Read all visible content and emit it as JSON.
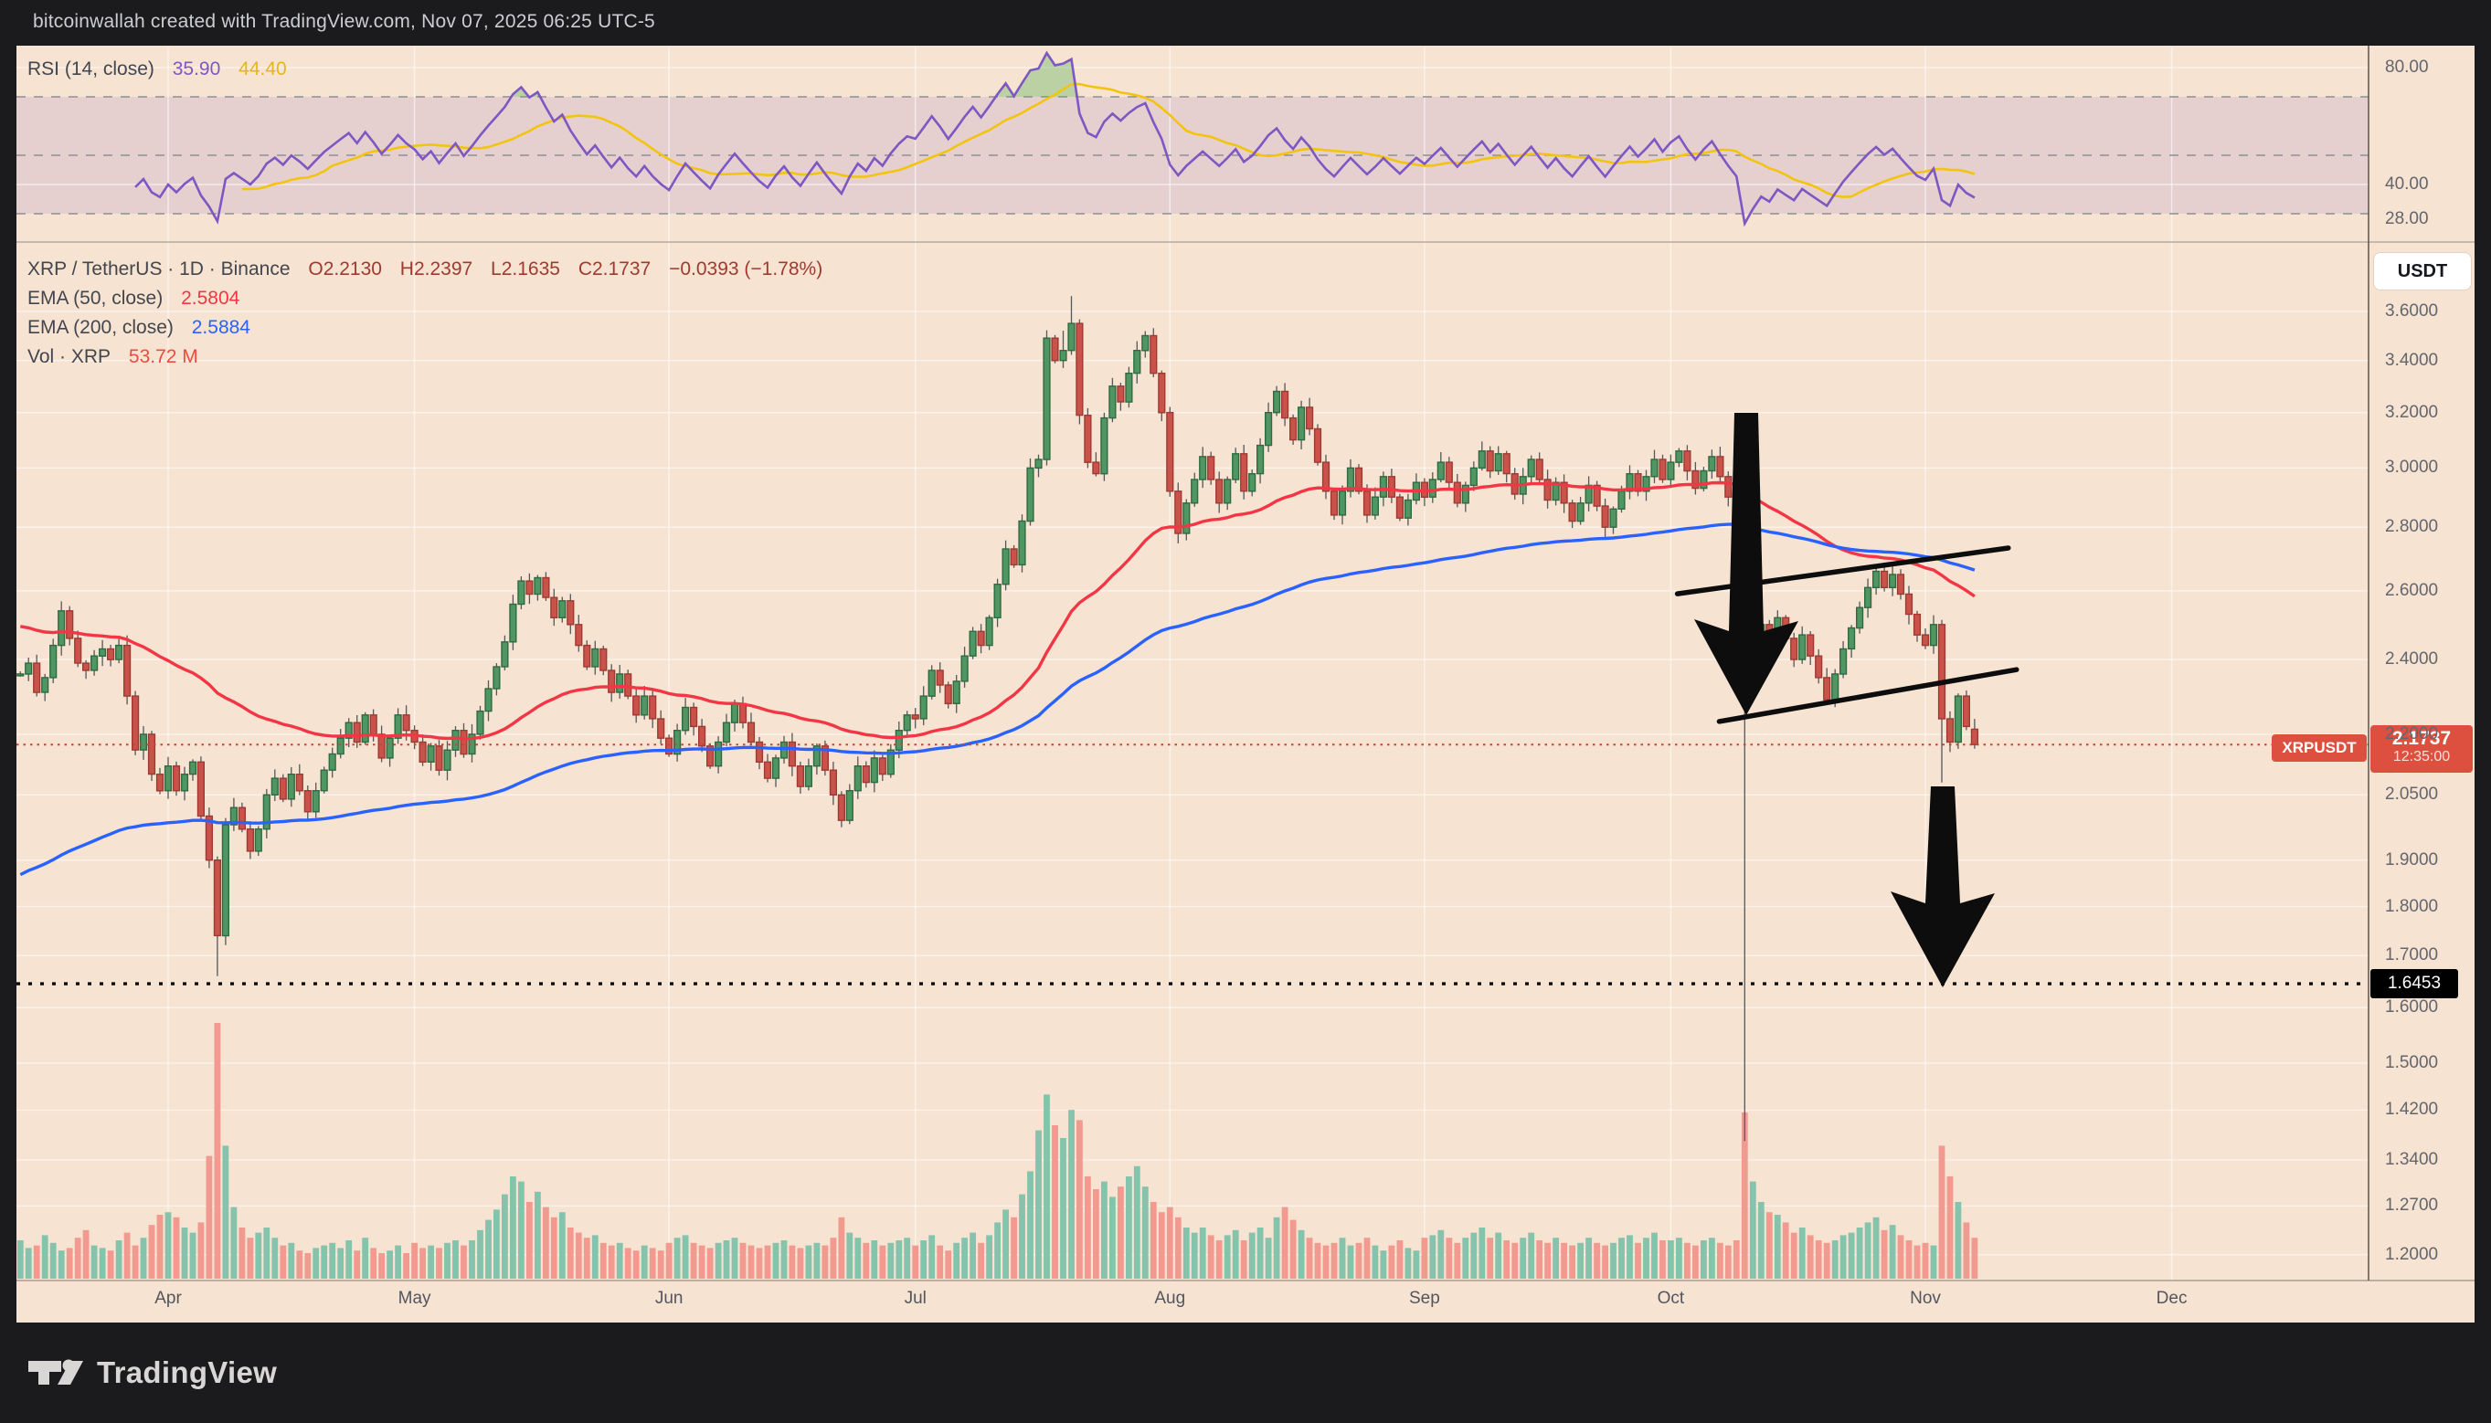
{
  "header": {
    "attribution": "bitcoinwallah created with TradingView.com, Nov 07, 2025 06:25 UTC-5"
  },
  "rsi_pane": {
    "legend": {
      "label": "RSI (14, close)",
      "value_rsi": "35.90",
      "value_ma": "44.40"
    },
    "ticks": [
      {
        "label": "80.00",
        "value": 80
      },
      {
        "label": "40.00",
        "value": 40
      },
      {
        "label": "28.00",
        "value": 28
      }
    ],
    "dashed_levels": [
      70,
      50,
      30
    ],
    "band": [
      30,
      70
    ]
  },
  "main_pane": {
    "legend": {
      "symbol": "XRP / TetherUS · 1D · Binance",
      "o": "O2.2130",
      "h": "H2.2397",
      "l": "L2.1635",
      "c": "C2.1737",
      "chg": "−0.0393 (−1.78%)",
      "ema50_label": "EMA (50, close)",
      "ema50_value": "2.5804",
      "ema200_label": "EMA (200, close)",
      "ema200_value": "2.5884",
      "vol_label": "Vol · XRP",
      "vol_value": "53.72 M"
    },
    "axis": {
      "currency_button": "USDT",
      "ticks": [
        {
          "label": "3.6000",
          "value": 3.6
        },
        {
          "label": "3.4000",
          "value": 3.4
        },
        {
          "label": "3.2000",
          "value": 3.2
        },
        {
          "label": "3.0000",
          "value": 3.0
        },
        {
          "label": "2.8000",
          "value": 2.8
        },
        {
          "label": "2.6000",
          "value": 2.6
        },
        {
          "label": "2.4000",
          "value": 2.4
        },
        {
          "label": "2.2000",
          "value": 2.2
        },
        {
          "label": "2.0500",
          "value": 2.05
        },
        {
          "label": "1.9000",
          "value": 1.9
        },
        {
          "label": "1.8000",
          "value": 1.8
        },
        {
          "label": "1.7000",
          "value": 1.7
        },
        {
          "label": "1.6000",
          "value": 1.6
        },
        {
          "label": "1.5000",
          "value": 1.5
        },
        {
          "label": "1.4200",
          "value": 1.42
        },
        {
          "label": "1.3400",
          "value": 1.34
        },
        {
          "label": "1.2700",
          "value": 1.27
        },
        {
          "label": "1.2000",
          "value": 1.2
        }
      ]
    },
    "price_labels": {
      "last": {
        "tag": "XRPUSDT",
        "price": "2.1737",
        "time": "12:35:00",
        "value": 2.1737
      },
      "level": {
        "price": "1.6453",
        "value": 1.6453
      }
    }
  },
  "footer": {
    "brand": "TradingView"
  },
  "chart_data": {
    "type": "candlestick",
    "title": "XRP / TetherUS · 1D · Binance",
    "symbol": "XRPUSDT",
    "timeframe": "1D",
    "exchange": "Binance",
    "last_ohlc": {
      "open": 2.213,
      "high": 2.2397,
      "low": 2.1635,
      "close": 2.1737,
      "change": -0.0393,
      "change_pct": -1.78
    },
    "indicator_values": {
      "rsi": 35.9,
      "rsi_ma": 44.4,
      "ema50": 2.5804,
      "ema200": 2.5884,
      "volume": "53.72M"
    },
    "x_axis": {
      "months": [
        {
          "label": "Apr",
          "day": 18
        },
        {
          "label": "May",
          "day": 48
        },
        {
          "label": "Jun",
          "day": 79
        },
        {
          "label": "Jul",
          "day": 109
        },
        {
          "label": "Aug",
          "day": 140
        },
        {
          "label": "Sep",
          "day": 171
        },
        {
          "label": "Oct",
          "day": 201
        },
        {
          "label": "Nov",
          "day": 232
        },
        {
          "label": "Dec",
          "day": 262
        }
      ],
      "first_bar_date": "2025-03-14",
      "last_bar_date": "2025-11-07"
    },
    "y_log_scale": true,
    "closes": [
      2.36,
      2.39,
      2.31,
      2.35,
      2.44,
      2.54,
      2.46,
      2.39,
      2.37,
      2.41,
      2.43,
      2.4,
      2.44,
      2.3,
      2.16,
      2.2,
      2.1,
      2.06,
      2.12,
      2.06,
      2.1,
      2.13,
      2.0,
      1.9,
      1.74,
      1.98,
      2.02,
      1.97,
      1.92,
      1.97,
      2.05,
      2.09,
      2.04,
      2.1,
      2.06,
      2.01,
      2.06,
      2.11,
      2.15,
      2.19,
      2.23,
      2.18,
      2.25,
      2.2,
      2.14,
      2.19,
      2.25,
      2.21,
      2.18,
      2.13,
      2.17,
      2.11,
      2.16,
      2.21,
      2.15,
      2.2,
      2.26,
      2.32,
      2.38,
      2.45,
      2.56,
      2.63,
      2.59,
      2.64,
      2.58,
      2.52,
      2.57,
      2.5,
      2.44,
      2.38,
      2.43,
      2.37,
      2.31,
      2.36,
      2.3,
      2.25,
      2.3,
      2.24,
      2.19,
      2.15,
      2.21,
      2.27,
      2.22,
      2.17,
      2.12,
      2.18,
      2.23,
      2.28,
      2.23,
      2.18,
      2.13,
      2.09,
      2.14,
      2.18,
      2.12,
      2.07,
      2.12,
      2.17,
      2.11,
      2.05,
      1.99,
      2.06,
      2.12,
      2.08,
      2.14,
      2.1,
      2.16,
      2.21,
      2.25,
      2.24,
      2.3,
      2.37,
      2.33,
      2.28,
      2.34,
      2.41,
      2.48,
      2.44,
      2.52,
      2.62,
      2.73,
      2.68,
      2.82,
      3.0,
      3.03,
      3.49,
      3.4,
      3.44,
      3.55,
      3.19,
      3.02,
      2.98,
      3.18,
      3.3,
      3.24,
      3.35,
      3.44,
      3.5,
      3.35,
      3.2,
      2.92,
      2.78,
      2.88,
      2.96,
      3.04,
      2.96,
      2.88,
      2.96,
      3.05,
      2.92,
      2.98,
      3.08,
      3.2,
      3.28,
      3.18,
      3.1,
      3.22,
      3.14,
      3.02,
      2.92,
      2.84,
      2.92,
      3.0,
      2.92,
      2.84,
      2.9,
      2.97,
      2.9,
      2.83,
      2.89,
      2.95,
      2.9,
      2.96,
      3.02,
      2.95,
      2.88,
      2.94,
      3.0,
      3.06,
      2.99,
      3.05,
      2.98,
      2.91,
      2.97,
      3.03,
      2.96,
      2.89,
      2.95,
      2.88,
      2.82,
      2.88,
      2.94,
      2.87,
      2.8,
      2.86,
      2.92,
      2.98,
      2.92,
      2.97,
      3.03,
      2.96,
      3.02,
      3.06,
      2.99,
      2.93,
      2.99,
      3.04,
      2.97,
      2.9,
      2.83,
      2.33,
      2.42,
      2.5,
      2.44,
      2.52,
      2.46,
      2.4,
      2.47,
      2.41,
      2.35,
      2.29,
      2.36,
      2.43,
      2.49,
      2.55,
      2.61,
      2.66,
      2.61,
      2.65,
      2.59,
      2.53,
      2.47,
      2.44,
      2.5,
      2.24,
      2.18,
      2.3,
      2.22,
      2.1737
    ],
    "volumes_pct": [
      15,
      12,
      13,
      17,
      14,
      11,
      12,
      16,
      19,
      13,
      12,
      11,
      15,
      18,
      13,
      16,
      21,
      25,
      26,
      24,
      20,
      18,
      22,
      48,
      100,
      52,
      28,
      20,
      16,
      18,
      20,
      16,
      13,
      14,
      11,
      10,
      12,
      13,
      14,
      12,
      15,
      11,
      16,
      12,
      10,
      11,
      13,
      10,
      14,
      12,
      13,
      12,
      14,
      15,
      13,
      15,
      19,
      23,
      27,
      33,
      40,
      38,
      30,
      34,
      28,
      24,
      26,
      20,
      18,
      16,
      17,
      14,
      13,
      14,
      12,
      11,
      13,
      12,
      11,
      14,
      16,
      17,
      14,
      13,
      12,
      14,
      15,
      16,
      14,
      13,
      12,
      13,
      14,
      15,
      13,
      12,
      13,
      14,
      13,
      16,
      24,
      18,
      16,
      14,
      15,
      13,
      14,
      15,
      16,
      13,
      15,
      17,
      13,
      11,
      14,
      16,
      18,
      14,
      17,
      22,
      27,
      24,
      33,
      42,
      58,
      72,
      60,
      55,
      66,
      62,
      40,
      35,
      38,
      32,
      36,
      40,
      44,
      36,
      30,
      26,
      28,
      24,
      20,
      18,
      20,
      17,
      15,
      17,
      19,
      15,
      18,
      20,
      16,
      24,
      28,
      23,
      19,
      16,
      14,
      13,
      14,
      16,
      13,
      14,
      16,
      13,
      11,
      13,
      15,
      12,
      11,
      16,
      17,
      19,
      16,
      14,
      16,
      18,
      20,
      16,
      18,
      15,
      14,
      16,
      18,
      15,
      14,
      16,
      14,
      13,
      14,
      16,
      14,
      13,
      14,
      16,
      17,
      14,
      16,
      18,
      15,
      15,
      16,
      14,
      13,
      15,
      16,
      14,
      13,
      15,
      65,
      38,
      30,
      26,
      25,
      22,
      18,
      20,
      17,
      15,
      14,
      15,
      17,
      18,
      20,
      22,
      24,
      19,
      21,
      17,
      15,
      13,
      14,
      13,
      52,
      40,
      30,
      22,
      16
    ],
    "ohlc_overrides": {
      "24": {
        "l": 1.66
      },
      "127": {
        "h": 3.52
      },
      "128": {
        "h": 3.665
      },
      "210": {
        "o": 2.8,
        "h": 2.85,
        "l": 1.37
      },
      "234": {
        "l": 2.08
      },
      "238": {
        "o": 2.213,
        "h": 2.2397,
        "l": 2.1635
      }
    },
    "indicators": {
      "rsi_period": 14,
      "rsi_ma_period": 14,
      "ema50_period": 50,
      "ema50_seed": 2.5,
      "ema200_period": 120,
      "ema200_seed": 1.86
    },
    "annotations": {
      "trendlines": [
        {
          "name": "channel-upper",
          "bar_from": 201.8,
          "price_from": 2.591,
          "bar_to": 242.1,
          "price_to": 2.733
        },
        {
          "name": "channel-lower",
          "bar_from": 206.9,
          "price_from": 2.233,
          "bar_to": 243.1,
          "price_to": 2.372
        }
      ],
      "arrows": [
        {
          "name": "arrow-crash",
          "bar": 210.2,
          "price_top": 3.2,
          "price_tip": 2.25
        },
        {
          "name": "arrow-breakdown",
          "bar": 234.1,
          "price_top": 2.07,
          "price_tip": 1.638
        }
      ],
      "dotted_level": 1.6453,
      "last_price_line": 2.1737
    },
    "colors": {
      "background": "#f6e3d1",
      "up": "#4f9663",
      "up_border": "#2f6a42",
      "down": "#c9534a",
      "down_border": "#9e3a32",
      "wick": "#55585c",
      "vol_up": "#84c3ac",
      "vol_down": "#f29a90",
      "ema50": "#f23645",
      "ema200": "#2962ff",
      "rsi": "#7e57c2",
      "rsi_ma": "#f2c40f",
      "rsi_band": "rgba(126,87,194,0.13)",
      "overbought_fill": "rgba(76,175,80,0.35)",
      "grid": "rgba(255,255,255,0.55)",
      "dashed": "#8c8f96",
      "annotation": "#0d0d0d",
      "last_price_dotted": "#c64537",
      "label_red": "#dd5040"
    }
  }
}
